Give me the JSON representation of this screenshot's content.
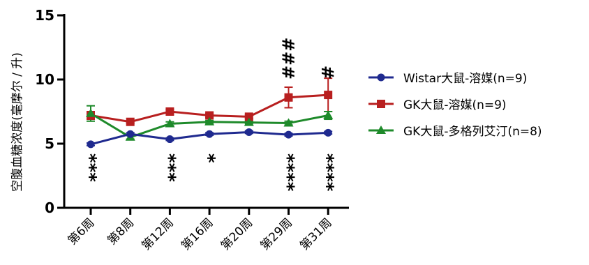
{
  "chart_data": {
    "type": "line",
    "title": "",
    "xlabel": "",
    "ylabel": "空腹血糖浓度(毫摩尔 / 升)",
    "categories": [
      "第6周",
      "第8周",
      "第12周",
      "第16周",
      "第20周",
      "第29周",
      "第31周"
    ],
    "ylim": [
      0,
      15
    ],
    "yticks": [
      0,
      5,
      10,
      15
    ],
    "grid": false,
    "legend_position": "right",
    "series": [
      {
        "name": "Wistar大鼠-溶媒(n=9)",
        "color": "#1f2a8f",
        "marker": "circle",
        "values": [
          4.95,
          5.75,
          5.35,
          5.75,
          5.9,
          5.7,
          5.85
        ],
        "errors": [
          0.1,
          0.1,
          0.1,
          0.1,
          0.1,
          0.1,
          0.1
        ]
      },
      {
        "name": "GK大鼠-溶媒(n=9)",
        "color": "#b81f1f",
        "marker": "square",
        "values": [
          7.2,
          6.7,
          7.5,
          7.2,
          7.1,
          8.6,
          8.8
        ],
        "errors": [
          0.3,
          0.1,
          0.15,
          0.15,
          0.15,
          0.8,
          1.3
        ]
      },
      {
        "name": "GK大鼠-多格列艾汀(n=8)",
        "color": "#1e8a2a",
        "marker": "triangle",
        "values": [
          7.35,
          5.5,
          6.55,
          6.7,
          6.65,
          6.6,
          7.2
        ],
        "errors": [
          0.6,
          0.15,
          0.15,
          0.1,
          0.1,
          0.15,
          0.3
        ]
      }
    ],
    "annotations": [
      {
        "category": "第6周",
        "text": "***",
        "position": "below"
      },
      {
        "category": "第12周",
        "text": "***",
        "position": "below"
      },
      {
        "category": "第16周",
        "text": "*",
        "position": "below"
      },
      {
        "category": "第29周",
        "text": "****",
        "position": "below"
      },
      {
        "category": "第31周",
        "text": "****",
        "position": "below"
      },
      {
        "category": "第29周",
        "text": "###",
        "position": "above"
      },
      {
        "category": "第31周",
        "text": "#",
        "position": "above"
      }
    ]
  }
}
